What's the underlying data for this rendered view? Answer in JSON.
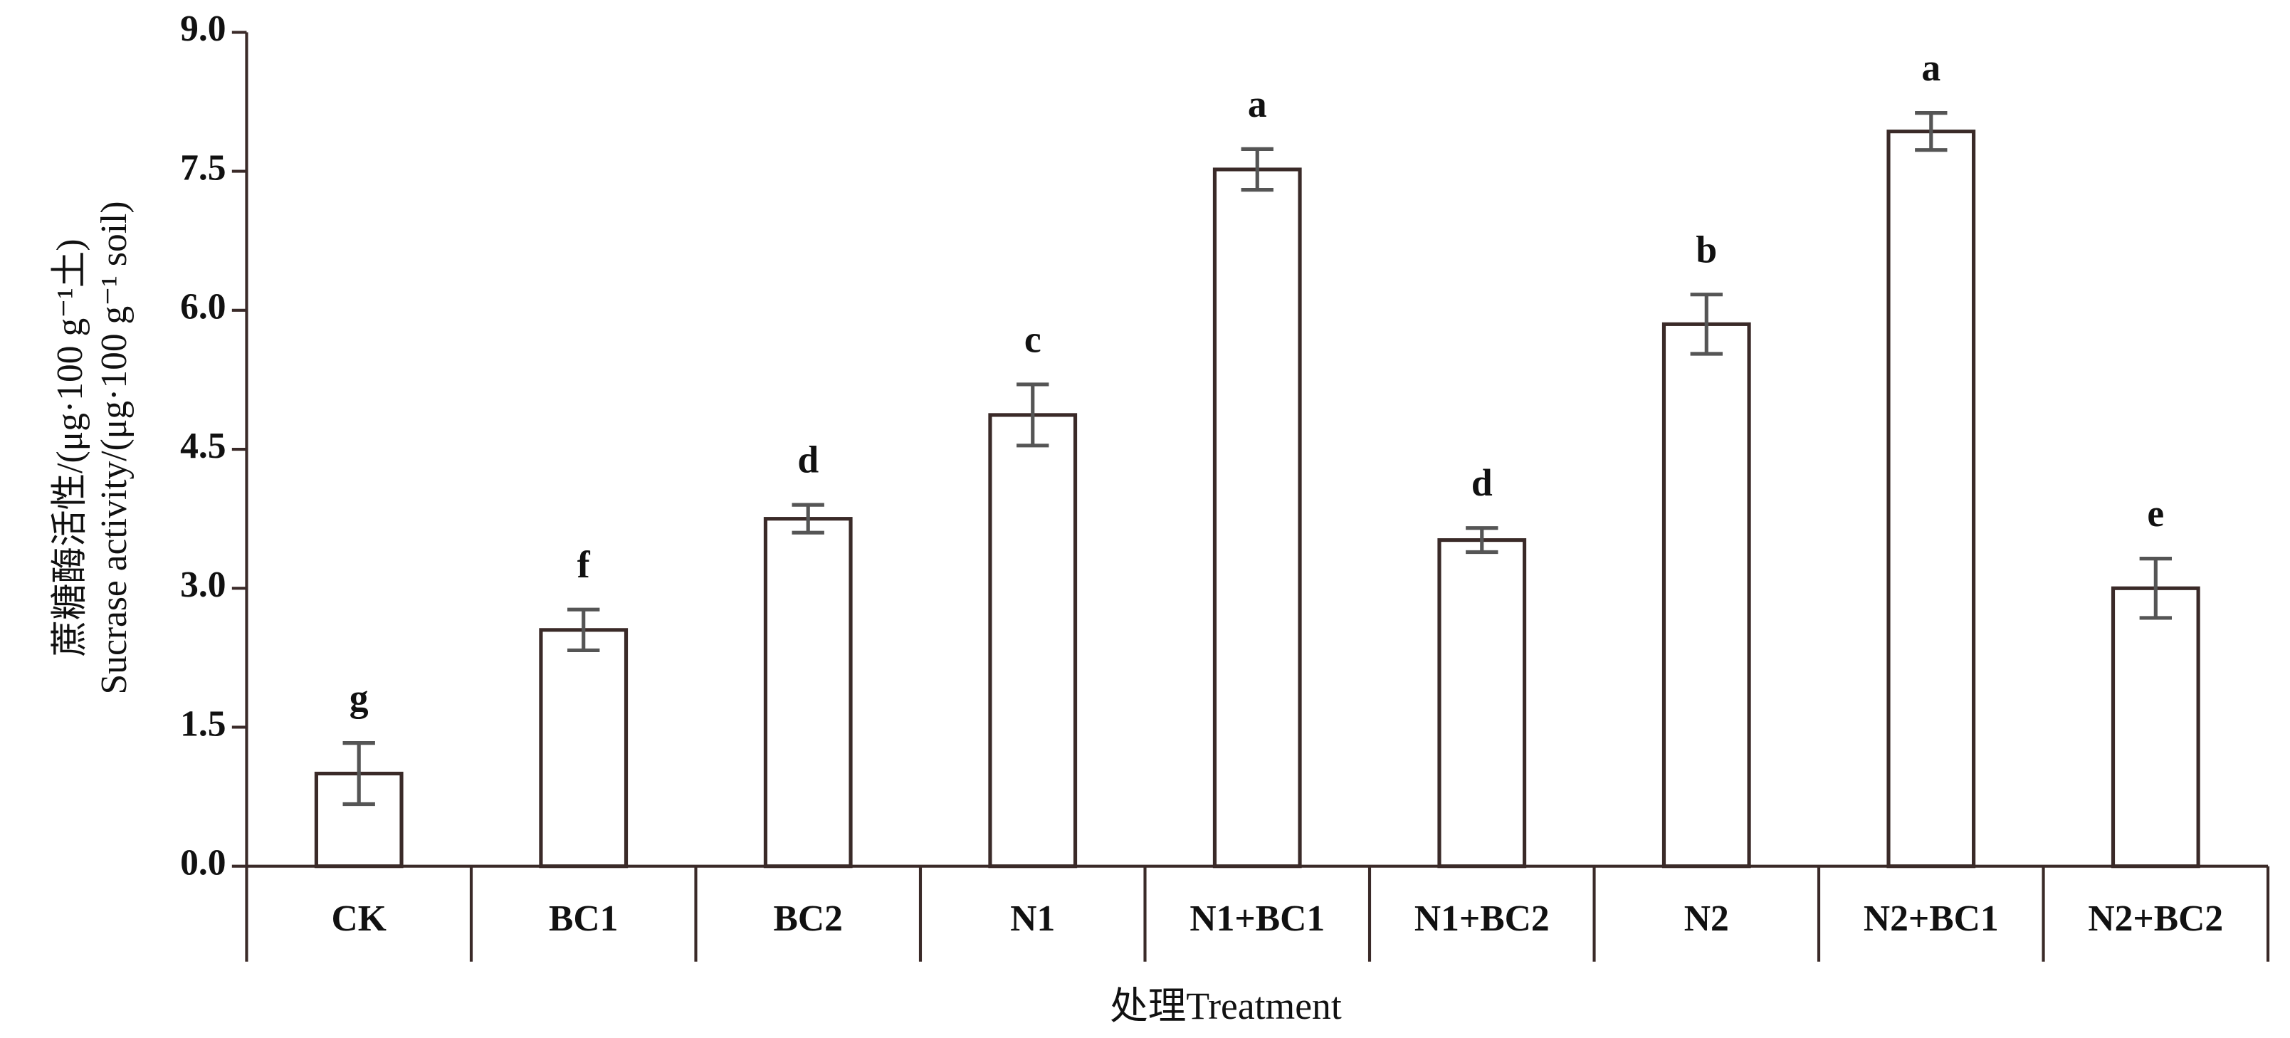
{
  "chart_data": {
    "type": "bar",
    "y_label_lines": [
      "蔗糖酶活性/(μg·100 g⁻¹土)",
      "Sucrase activity/(μg·100 g⁻¹ soil)"
    ],
    "x_label": "处理Treatment",
    "categories": [
      "CK",
      "BC1",
      "BC2",
      "N1",
      "N1+BC1",
      "N1+BC2",
      "N2",
      "N2+BC1",
      "N2+BC2"
    ],
    "values": [
      1.0,
      2.55,
      3.75,
      4.87,
      7.52,
      3.52,
      5.85,
      7.93,
      3.0
    ],
    "errors": [
      0.33,
      0.22,
      0.15,
      0.33,
      0.22,
      0.13,
      0.32,
      0.2,
      0.32
    ],
    "annotations": [
      "g",
      "f",
      "d",
      "c",
      "a",
      "d",
      "b",
      "a",
      "e"
    ],
    "color": "#ffffff",
    "ylim": [
      0,
      9
    ],
    "yticks": [
      {
        "value": 0,
        "label": "0.0"
      },
      1.5,
      {
        "value": 3,
        "label": "3.0"
      },
      4.5,
      {
        "value": 6,
        "label": "6.0"
      },
      7.5,
      {
        "value": 9,
        "label": "9.0"
      }
    ]
  }
}
